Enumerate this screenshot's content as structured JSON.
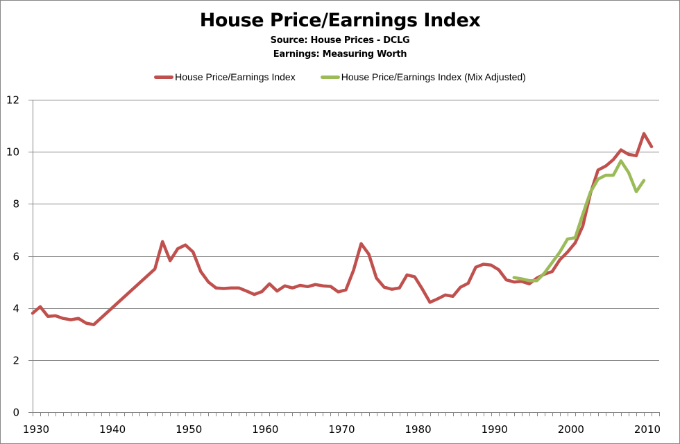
{
  "chart_data": {
    "type": "line",
    "title": "House Price/Earnings Index",
    "subtitle": [
      "Source: House Prices - DCLG",
      "Earnings: Measuring Worth"
    ],
    "xlabel": "",
    "ylabel": "",
    "xlim": [
      1930,
      2012
    ],
    "ylim": [
      0,
      12
    ],
    "x_ticks": [
      1930,
      1940,
      1950,
      1960,
      1970,
      1980,
      1990,
      2000,
      2010
    ],
    "x_tick_labels": [
      "1930",
      "1940",
      "1950",
      "1960",
      "1970",
      "1980",
      "1990",
      "2000",
      "2010"
    ],
    "y_ticks": [
      0,
      2,
      4,
      6,
      8,
      10,
      12
    ],
    "y_tick_labels": [
      "0",
      "2",
      "4",
      "6",
      "8",
      "10",
      "12"
    ],
    "grid": "horizontal",
    "legend_position": "top-center",
    "series": [
      {
        "name": "House Price/Earnings Index",
        "color": "#c0504d",
        "x": [
          1930,
          1931,
          1932,
          1933,
          1934,
          1935,
          1936,
          1937,
          1938,
          1946,
          1947,
          1948,
          1949,
          1950,
          1951,
          1952,
          1953,
          1954,
          1955,
          1956,
          1957,
          1958,
          1959,
          1960,
          1961,
          1962,
          1963,
          1964,
          1965,
          1966,
          1967,
          1968,
          1969,
          1970,
          1971,
          1972,
          1973,
          1974,
          1975,
          1976,
          1977,
          1978,
          1979,
          1980,
          1981,
          1982,
          1983,
          1984,
          1985,
          1986,
          1987,
          1988,
          1989,
          1990,
          1991,
          1992,
          1993,
          1994,
          1995,
          1996,
          1997,
          1998,
          1999,
          2000,
          2001,
          2002,
          2003,
          2004,
          2005,
          2006,
          2007,
          2008,
          2009,
          2010,
          2011
        ],
        "values": [
          3.8,
          4.05,
          3.68,
          3.7,
          3.6,
          3.55,
          3.6,
          3.42,
          3.36,
          5.5,
          6.55,
          5.82,
          6.28,
          6.42,
          6.15,
          5.4,
          5.0,
          4.77,
          4.75,
          4.77,
          4.77,
          4.65,
          4.52,
          4.63,
          4.93,
          4.65,
          4.85,
          4.77,
          4.87,
          4.82,
          4.9,
          4.85,
          4.83,
          4.62,
          4.7,
          5.45,
          6.47,
          6.07,
          5.15,
          4.8,
          4.72,
          4.77,
          5.27,
          5.2,
          4.73,
          4.22,
          4.35,
          4.5,
          4.45,
          4.8,
          4.95,
          5.57,
          5.68,
          5.65,
          5.47,
          5.08,
          5.0,
          5.02,
          4.93,
          5.15,
          5.3,
          5.4,
          5.85,
          6.15,
          6.5,
          7.15,
          8.4,
          9.3,
          9.45,
          9.7,
          10.07,
          9.9,
          9.85,
          10.7,
          10.2
        ]
      },
      {
        "name": "House Price/Earnings Index (Mix Adjusted)",
        "color": "#9bbb59",
        "x": [
          1993,
          1994,
          1995,
          1996,
          1997,
          1998,
          1999,
          2000,
          2001,
          2002,
          2003,
          2004,
          2005,
          2006,
          2007,
          2008,
          2009,
          2010
        ],
        "values": [
          5.17,
          5.12,
          5.05,
          5.05,
          5.35,
          5.75,
          6.15,
          6.65,
          6.7,
          7.6,
          8.45,
          8.95,
          9.1,
          9.1,
          9.65,
          9.2,
          8.47,
          8.9
        ]
      }
    ]
  }
}
